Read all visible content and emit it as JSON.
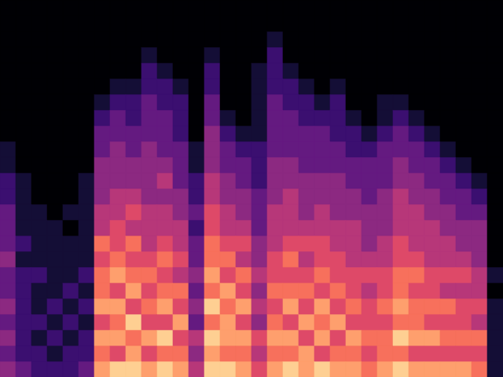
{
  "chart_data": {
    "type": "heatmap",
    "xlim": [
      0,
      32
    ],
    "ylim": [
      0,
      24
    ],
    "zlim": [
      0,
      10
    ],
    "tick_labels": false,
    "z": [
      [
        4,
        3,
        4,
        3,
        4,
        3,
        3,
        4,
        3,
        3,
        3,
        2,
        2,
        1,
        1,
        0,
        0,
        0,
        0,
        0,
        0,
        0,
        0,
        0
      ],
      [
        3,
        2,
        2,
        2,
        2,
        2,
        2,
        1,
        2,
        1,
        1,
        1,
        1,
        0,
        0,
        0,
        0,
        0,
        0,
        0,
        0,
        0,
        0,
        0
      ],
      [
        2,
        2,
        1,
        2,
        1,
        1,
        2,
        1,
        1,
        1,
        1,
        0,
        0,
        0,
        0,
        0,
        0,
        0,
        0,
        0,
        0,
        0,
        0,
        0
      ],
      [
        2,
        1,
        2,
        1,
        2,
        1,
        1,
        1,
        1,
        1,
        0,
        0,
        0,
        0,
        0,
        0,
        0,
        0,
        0,
        0,
        0,
        0,
        0,
        0
      ],
      [
        2,
        2,
        1,
        2,
        1,
        2,
        1,
        1,
        1,
        0,
        1,
        0,
        0,
        0,
        0,
        0,
        0,
        0,
        0,
        0,
        0,
        0,
        0,
        0
      ],
      [
        3,
        2,
        2,
        1,
        2,
        1,
        2,
        1,
        1,
        1,
        1,
        1,
        1,
        0,
        0,
        0,
        0,
        0,
        0,
        0,
        0,
        0,
        0,
        0
      ],
      [
        8,
        7,
        8,
        6,
        8,
        7,
        7,
        6,
        7,
        5,
        5,
        4,
        4,
        4,
        3,
        3,
        2,
        1,
        0,
        0,
        0,
        0,
        0,
        0
      ],
      [
        9,
        6,
        8,
        7,
        8,
        6,
        8,
        7,
        6,
        6,
        5,
        5,
        4,
        4,
        4,
        3,
        3,
        2,
        1,
        0,
        0,
        0,
        0,
        0
      ],
      [
        9,
        8,
        7,
        9,
        6,
        8,
        7,
        6,
        7,
        5,
        6,
        5,
        4,
        4,
        3,
        3,
        2,
        2,
        1,
        0,
        0,
        0,
        0,
        0
      ],
      [
        8,
        6,
        8,
        6,
        7,
        6,
        7,
        6,
        5,
        5,
        5,
        4,
        4,
        4,
        4,
        3,
        3,
        3,
        2,
        2,
        1,
        0,
        0,
        0
      ],
      [
        9,
        7,
        9,
        6,
        8,
        7,
        6,
        7,
        6,
        5,
        5,
        4,
        5,
        4,
        3,
        3,
        3,
        2,
        2,
        1,
        0,
        0,
        0,
        0
      ],
      [
        8,
        7,
        6,
        8,
        6,
        7,
        5,
        6,
        5,
        5,
        4,
        4,
        3,
        3,
        3,
        2,
        2,
        2,
        1,
        0,
        0,
        0,
        0,
        0
      ],
      [
        5,
        4,
        5,
        3,
        4,
        3,
        4,
        3,
        3,
        2,
        3,
        2,
        2,
        1,
        1,
        0,
        0,
        0,
        0,
        0,
        0,
        0,
        0,
        0
      ],
      [
        9,
        8,
        9,
        7,
        9,
        7,
        8,
        7,
        7,
        6,
        6,
        5,
        5,
        4,
        4,
        4,
        3,
        3,
        2,
        2,
        1,
        0,
        0,
        0
      ],
      [
        9,
        7,
        8,
        8,
        7,
        8,
        6,
        7,
        6,
        5,
        5,
        4,
        4,
        3,
        3,
        2,
        1,
        0,
        0,
        0,
        0,
        0,
        0,
        0
      ],
      [
        8,
        7,
        8,
        6,
        8,
        6,
        7,
        5,
        6,
        5,
        4,
        4,
        3,
        3,
        2,
        1,
        0,
        0,
        0,
        0,
        0,
        0,
        0,
        0
      ],
      [
        6,
        5,
        6,
        4,
        5,
        4,
        5,
        4,
        4,
        3,
        3,
        3,
        2,
        2,
        2,
        1,
        1,
        1,
        1,
        1,
        0,
        0,
        0,
        0
      ],
      [
        8,
        7,
        8,
        7,
        6,
        7,
        6,
        6,
        5,
        5,
        5,
        4,
        4,
        4,
        3,
        3,
        3,
        3,
        2,
        2,
        2,
        1,
        0,
        0
      ],
      [
        9,
        7,
        8,
        6,
        8,
        7,
        6,
        7,
        6,
        5,
        5,
        5,
        4,
        4,
        3,
        3,
        3,
        2,
        2,
        1,
        0,
        0,
        0,
        0
      ],
      [
        8,
        8,
        6,
        8,
        6,
        7,
        6,
        5,
        6,
        5,
        4,
        4,
        4,
        3,
        3,
        3,
        2,
        2,
        1,
        0,
        0,
        0,
        0,
        0
      ],
      [
        9,
        6,
        8,
        7,
        8,
        6,
        7,
        6,
        6,
        5,
        5,
        4,
        4,
        3,
        3,
        3,
        2,
        1,
        0,
        0,
        0,
        0,
        0,
        0
      ],
      [
        8,
        7,
        6,
        8,
        6,
        7,
        6,
        6,
        5,
        5,
        4,
        4,
        4,
        3,
        3,
        2,
        2,
        2,
        1,
        0,
        0,
        0,
        0,
        0
      ],
      [
        8,
        7,
        8,
        6,
        7,
        6,
        6,
        5,
        5,
        5,
        4,
        4,
        3,
        3,
        2,
        2,
        1,
        0,
        0,
        0,
        0,
        0,
        0,
        0
      ],
      [
        7,
        6,
        7,
        6,
        6,
        5,
        6,
        5,
        4,
        4,
        4,
        3,
        3,
        3,
        2,
        1,
        0,
        0,
        0,
        0,
        0,
        0,
        0,
        0
      ],
      [
        8,
        7,
        7,
        6,
        7,
        6,
        6,
        5,
        5,
        4,
        4,
        4,
        3,
        3,
        3,
        2,
        1,
        1,
        0,
        0,
        0,
        0,
        0,
        0
      ],
      [
        9,
        7,
        9,
        7,
        8,
        7,
        7,
        6,
        6,
        5,
        5,
        5,
        4,
        4,
        3,
        3,
        2,
        1,
        0,
        0,
        0,
        0,
        0,
        0
      ],
      [
        8,
        6,
        8,
        7,
        7,
        6,
        7,
        6,
        5,
        5,
        5,
        4,
        4,
        3,
        3,
        2,
        1,
        0,
        0,
        0,
        0,
        0,
        0,
        0
      ],
      [
        8,
        6,
        8,
        6,
        7,
        6,
        6,
        5,
        5,
        5,
        4,
        4,
        3,
        3,
        2,
        1,
        0,
        0,
        0,
        0,
        0,
        0,
        0,
        0
      ],
      [
        8,
        6,
        7,
        6,
        7,
        5,
        6,
        5,
        5,
        4,
        4,
        3,
        3,
        2,
        1,
        0,
        0,
        0,
        0,
        0,
        0,
        0,
        0,
        0
      ],
      [
        8,
        6,
        7,
        6,
        6,
        5,
        6,
        5,
        4,
        4,
        3,
        3,
        2,
        1,
        0,
        0,
        0,
        0,
        0,
        0,
        0,
        0,
        0,
        0
      ],
      [
        7,
        6,
        7,
        5,
        6,
        5,
        5,
        4,
        4,
        4,
        3,
        2,
        1,
        0,
        0,
        0,
        0,
        0,
        0,
        0,
        0,
        0,
        0,
        0
      ],
      [
        1,
        1,
        1,
        1,
        1,
        0,
        1,
        0,
        0,
        0,
        0,
        0,
        0,
        0,
        0,
        0,
        0,
        0,
        0,
        0,
        0,
        0,
        0,
        0
      ]
    ]
  }
}
